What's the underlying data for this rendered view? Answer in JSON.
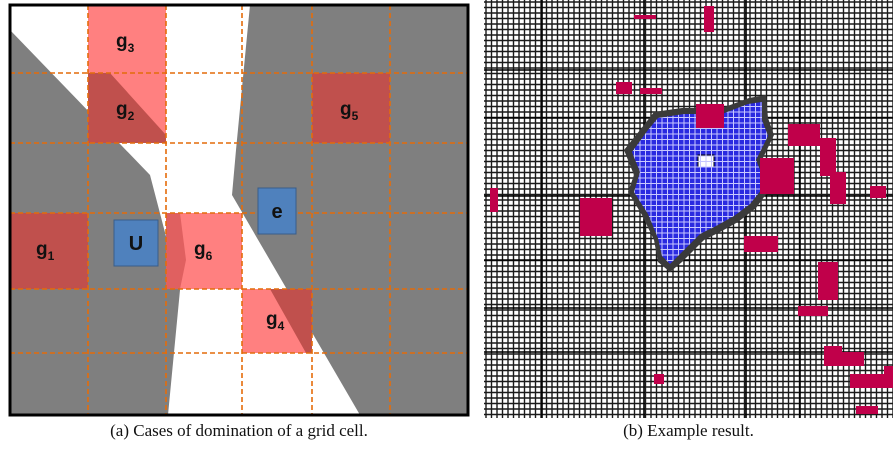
{
  "figure_a": {
    "caption": "(a) Cases of domination of a grid cell.",
    "labels": {
      "g1": "g",
      "g1_sub": "1",
      "g2": "g",
      "g2_sub": "2",
      "g3": "g",
      "g3_sub": "3",
      "g4": "g",
      "g4_sub": "4",
      "g5": "g",
      "g5_sub": "5",
      "g6": "g",
      "g6_sub": "6",
      "u": "U",
      "e": "e"
    },
    "colors": {
      "shadow_gray": "#7f7f7f",
      "cell_light_red": "#ff8080",
      "cell_dark_red": "#c0504d",
      "grid_line": "#e46c0a",
      "marker_blue": "#4f81bd",
      "border": "#000000"
    }
  },
  "figure_b": {
    "caption": "(b) Example result.",
    "colors": {
      "grid": "#1a1a1a",
      "region_blue": "#2020d0",
      "dominated_red": "#c0004a",
      "boundary": "#444444"
    }
  }
}
